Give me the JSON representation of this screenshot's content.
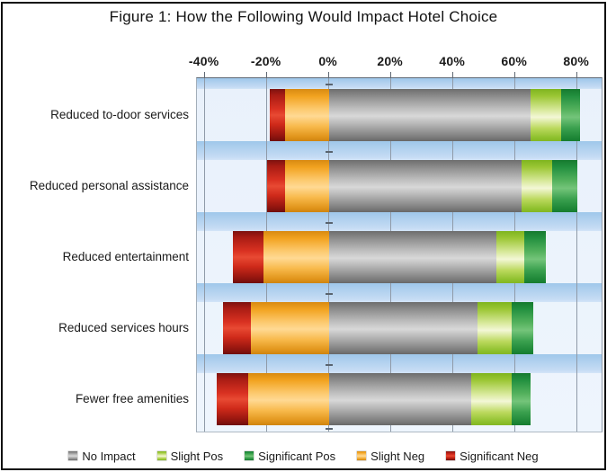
{
  "title": "Figure 1: How the Following Would Impact Hotel Choice",
  "chart_data": {
    "type": "bar",
    "orientation": "horizontal-stacked-diverging",
    "title": "Figure 1: How the Following Would Impact Hotel Choice",
    "value_unit": "%",
    "x_axis": {
      "position": "top",
      "tick_labels": [
        "-40%",
        "-20%",
        "0%",
        "20%",
        "40%",
        "60%",
        "80%"
      ],
      "tick_values": [
        -40,
        -20,
        0,
        20,
        40,
        60,
        80
      ],
      "range": [
        -42.5,
        88.5
      ],
      "grid": true
    },
    "categories": [
      "Reduced to-door services",
      "Reduced personal assistance",
      "Reduced entertainment",
      "Reduced services hours",
      "Fewer free amenities"
    ],
    "series": [
      {
        "name": "No Impact",
        "key": "no_impact",
        "color": "#b8b8b8",
        "values": [
          65,
          62,
          54,
          48,
          46
        ]
      },
      {
        "name": "Slight Pos",
        "key": "slight_pos",
        "color": "#a6d14a",
        "values": [
          10,
          10,
          9,
          11,
          13
        ]
      },
      {
        "name": "Significant Pos",
        "key": "significant_pos",
        "color": "#2e9e4a",
        "values": [
          6,
          8,
          7,
          7,
          6
        ]
      },
      {
        "name": "Slight Neg",
        "key": "slight_neg",
        "color": "#f6a825",
        "values": [
          14,
          14,
          21,
          25,
          26
        ]
      },
      {
        "name": "Significant Neg",
        "key": "significant_neg",
        "color": "#cc2418",
        "values": [
          5,
          6,
          10,
          9,
          10
        ]
      }
    ],
    "stack_order_left_to_right": [
      "significant_neg",
      "slight_neg",
      "no_impact",
      "slight_pos",
      "significant_pos"
    ],
    "legend": [
      "No Impact",
      "Slight Pos",
      "Significant Pos",
      "Slight Neg",
      "Significant Neg"
    ],
    "legend_position": "bottom"
  }
}
